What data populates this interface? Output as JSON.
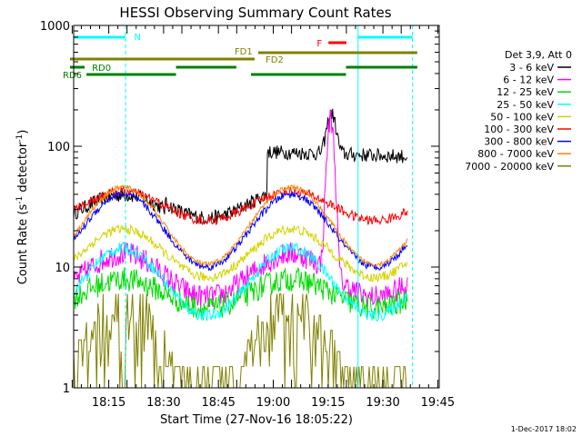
{
  "chart_data": {
    "type": "line",
    "title": "HESSI Observing Summary Count Rates",
    "xlabel": "Start Time (27-Nov-16 18:05:22)",
    "ylabel_prefix": "Count Rate (s",
    "ylabel_sup1": "-1",
    "ylabel_mid": " detector",
    "ylabel_sup2": "-1",
    "ylabel_suffix": ")",
    "yscale": "log",
    "ylim": [
      1,
      1000
    ],
    "xlim_min": [
      0,
      95
    ],
    "xaxis_zero": "18:05:22",
    "yticks": [
      {
        "value": 1,
        "label": "1"
      },
      {
        "value": 10,
        "label": "10"
      },
      {
        "value": 100,
        "label": "100"
      },
      {
        "value": 1000,
        "label": "1000"
      }
    ],
    "xticks": [
      {
        "min": 9.6,
        "label": "18:15"
      },
      {
        "min": 24.6,
        "label": "18:30"
      },
      {
        "min": 39.6,
        "label": "18:45"
      },
      {
        "min": 54.6,
        "label": "19:00"
      },
      {
        "min": 69.6,
        "label": "19:15"
      },
      {
        "min": 84.6,
        "label": "19:30"
      },
      {
        "min": 99.6,
        "label": "19:45"
      }
    ],
    "legend_header": "Det 3,9, Att 0",
    "series": [
      {
        "name": "3 - 6 keV",
        "color": "#000000",
        "base": 33,
        "amp": 0.14,
        "noise": 0.06,
        "segments": [
          [
            0,
            34,
            45,
            3.5
          ],
          [
            56,
            60,
            95,
            6.0
          ],
          [
            23.5,
            36,
            56,
            3.0
          ]
        ],
        "bumps": [
          [
            71,
            1.7,
            2.0
          ]
        ],
        "steps": [
          [
            0,
            35
          ],
          [
            20,
            42
          ],
          [
            37,
            50
          ],
          [
            50,
            48
          ],
          [
            51,
            95
          ]
        ],
        "stepvals": [
          35,
          40,
          48,
          44,
          95
        ]
      },
      {
        "name": "6 - 12 keV",
        "color": "#ff00ff",
        "base": 8.5,
        "amp": 0.18,
        "noise": 0.1
      },
      {
        "name": "12 - 25 keV",
        "color": "#00dd00",
        "base": 6.0,
        "amp": 0.12,
        "noise": 0.1
      },
      {
        "name": "25 - 50 keV",
        "color": "#00ffff",
        "base": 7.5,
        "amp": 0.28,
        "noise": 0.05
      },
      {
        "name": "50 - 100 keV",
        "color": "#d4d400",
        "base": 13.0,
        "amp": 0.2,
        "noise": 0.04
      },
      {
        "name": "100 - 300 keV",
        "color": "#ff0000",
        "base": 32,
        "amp": 0.12,
        "noise": 0.04
      },
      {
        "name": "300 - 800 keV",
        "color": "#0000ff",
        "base": 20,
        "amp": 0.3,
        "noise": 0.03
      },
      {
        "name": "800 - 7000 keV",
        "color": "#ff8000",
        "base": 22,
        "amp": 0.32,
        "noise": 0.02
      },
      {
        "name": "7000 - 20000 keV",
        "color": "#808000",
        "base": 2.0,
        "amp": 0.45,
        "noise": 0.25
      }
    ],
    "annotations": [
      {
        "label": "N",
        "color": "#00ffff"
      },
      {
        "label": "FD1",
        "color": "#808000"
      },
      {
        "label": "FD2",
        "color": "#808000"
      },
      {
        "label": "RD0",
        "color": "#008000"
      },
      {
        "label": "RD6",
        "color": "#008000"
      },
      {
        "label": "F",
        "color": "#ff0000"
      }
    ],
    "footer": "1-Dec-2017 18:02"
  }
}
